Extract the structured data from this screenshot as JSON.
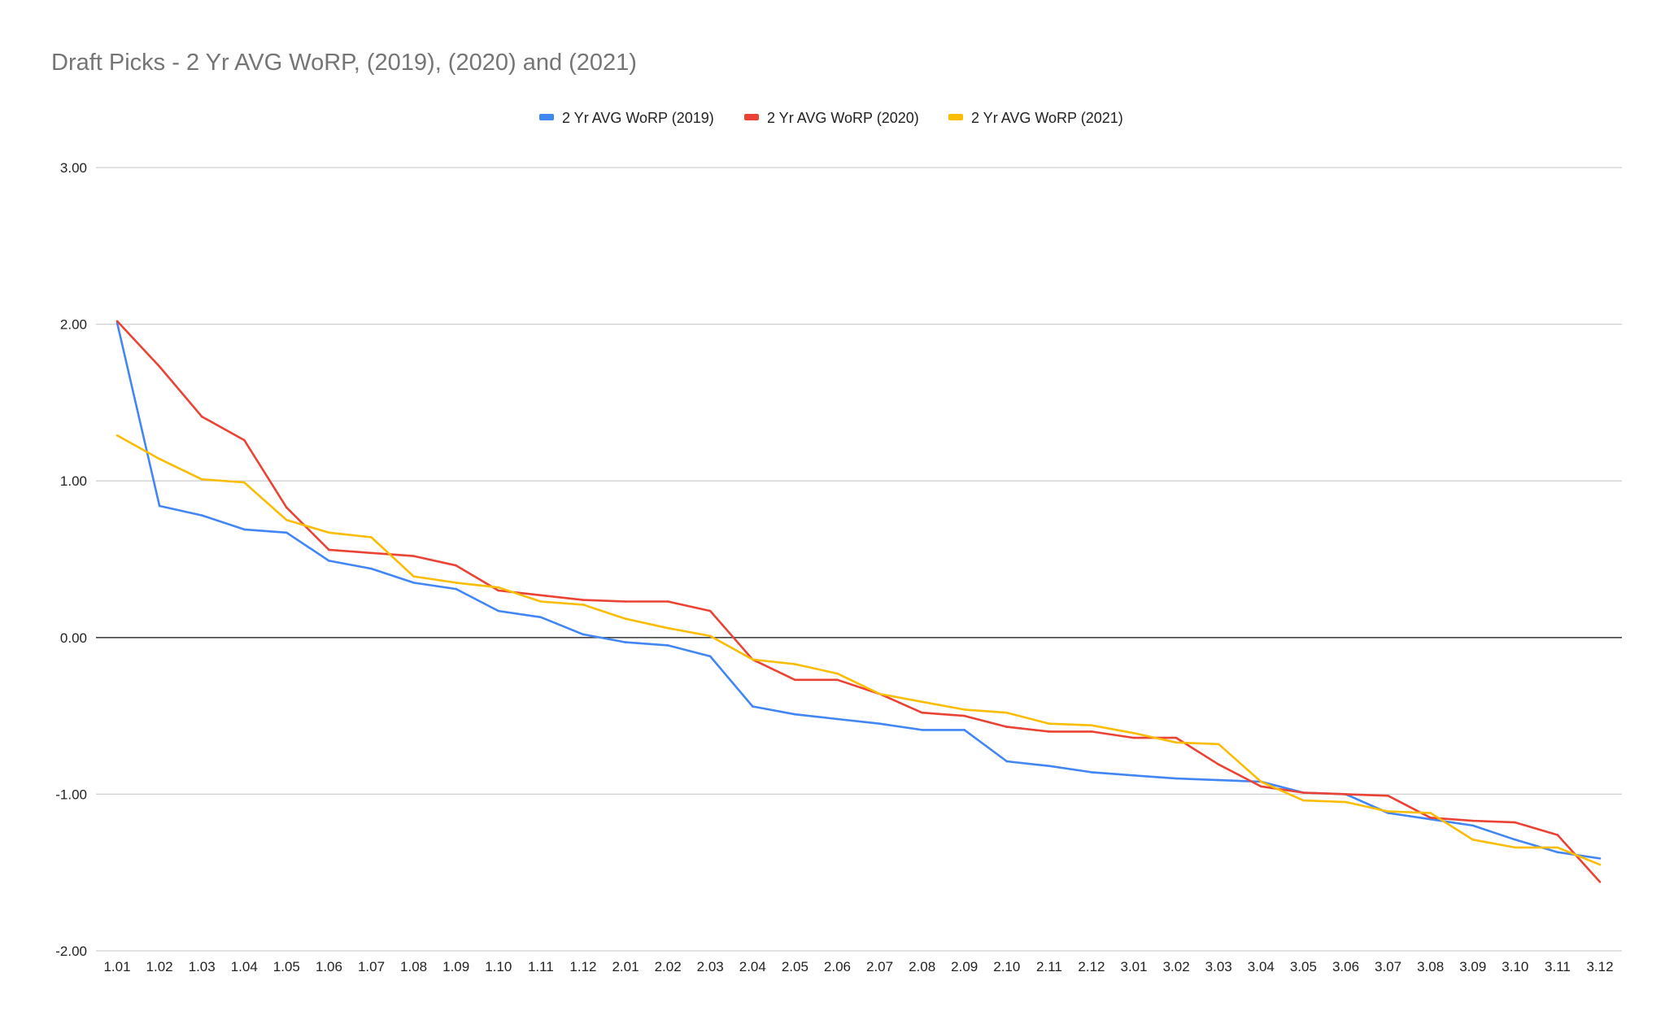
{
  "chart_data": {
    "type": "line",
    "title": "Draft Picks - 2 Yr AVG WoRP, (2019), (2020) and (2021)",
    "xlabel": "",
    "ylabel": "",
    "ylim": [
      -2,
      3
    ],
    "yticks": [
      "3.00",
      "2.00",
      "1.00",
      "0.00",
      "-1.00",
      "-2.00"
    ],
    "ytick_values": [
      3,
      2,
      1,
      0,
      -1,
      -2
    ],
    "grid": true,
    "legend_position": "top-center",
    "categories": [
      "1.01",
      "1.02",
      "1.03",
      "1.04",
      "1.05",
      "1.06",
      "1.07",
      "1.08",
      "1.09",
      "1.10",
      "1.11",
      "1.12",
      "2.01",
      "2.02",
      "2.03",
      "2.04",
      "2.05",
      "2.06",
      "2.07",
      "2.08",
      "2.09",
      "2.10",
      "2.11",
      "2.12",
      "3.01",
      "3.02",
      "3.03",
      "3.04",
      "3.05",
      "3.06",
      "3.07",
      "3.08",
      "3.09",
      "3.10",
      "3.11",
      "3.12"
    ],
    "series": [
      {
        "name": "2 Yr AVG WoRP (2019)",
        "color": "#4285f4",
        "values": [
          2.01,
          0.84,
          0.78,
          0.69,
          0.67,
          0.49,
          0.44,
          0.35,
          0.31,
          0.17,
          0.13,
          0.02,
          -0.03,
          -0.05,
          -0.12,
          -0.44,
          -0.49,
          -0.52,
          -0.55,
          -0.59,
          -0.59,
          -0.79,
          -0.82,
          -0.86,
          -0.88,
          -0.9,
          -0.91,
          -0.92,
          -0.99,
          -1.0,
          -1.12,
          -1.16,
          -1.2,
          -1.29,
          -1.37,
          -1.41
        ]
      },
      {
        "name": "2 Yr AVG WoRP (2020)",
        "color": "#ea4335",
        "values": [
          2.02,
          1.73,
          1.41,
          1.26,
          0.83,
          0.56,
          0.54,
          0.52,
          0.46,
          0.3,
          0.27,
          0.24,
          0.23,
          0.23,
          0.17,
          -0.14,
          -0.27,
          -0.27,
          -0.36,
          -0.48,
          -0.5,
          -0.57,
          -0.6,
          -0.6,
          -0.64,
          -0.64,
          -0.81,
          -0.95,
          -0.99,
          -1.0,
          -1.01,
          -1.15,
          -1.17,
          -1.18,
          -1.26,
          -1.56
        ]
      },
      {
        "name": "2 Yr AVG WoRP (2021)",
        "color": "#fbbc04",
        "values": [
          1.29,
          1.14,
          1.01,
          0.99,
          0.75,
          0.67,
          0.64,
          0.39,
          0.35,
          0.32,
          0.23,
          0.21,
          0.12,
          0.06,
          0.01,
          -0.14,
          -0.17,
          -0.23,
          -0.36,
          -0.41,
          -0.46,
          -0.48,
          -0.55,
          -0.56,
          -0.61,
          -0.67,
          -0.68,
          -0.92,
          -1.04,
          -1.05,
          -1.11,
          -1.12,
          -1.29,
          -1.34,
          -1.34,
          -1.45
        ]
      }
    ]
  }
}
